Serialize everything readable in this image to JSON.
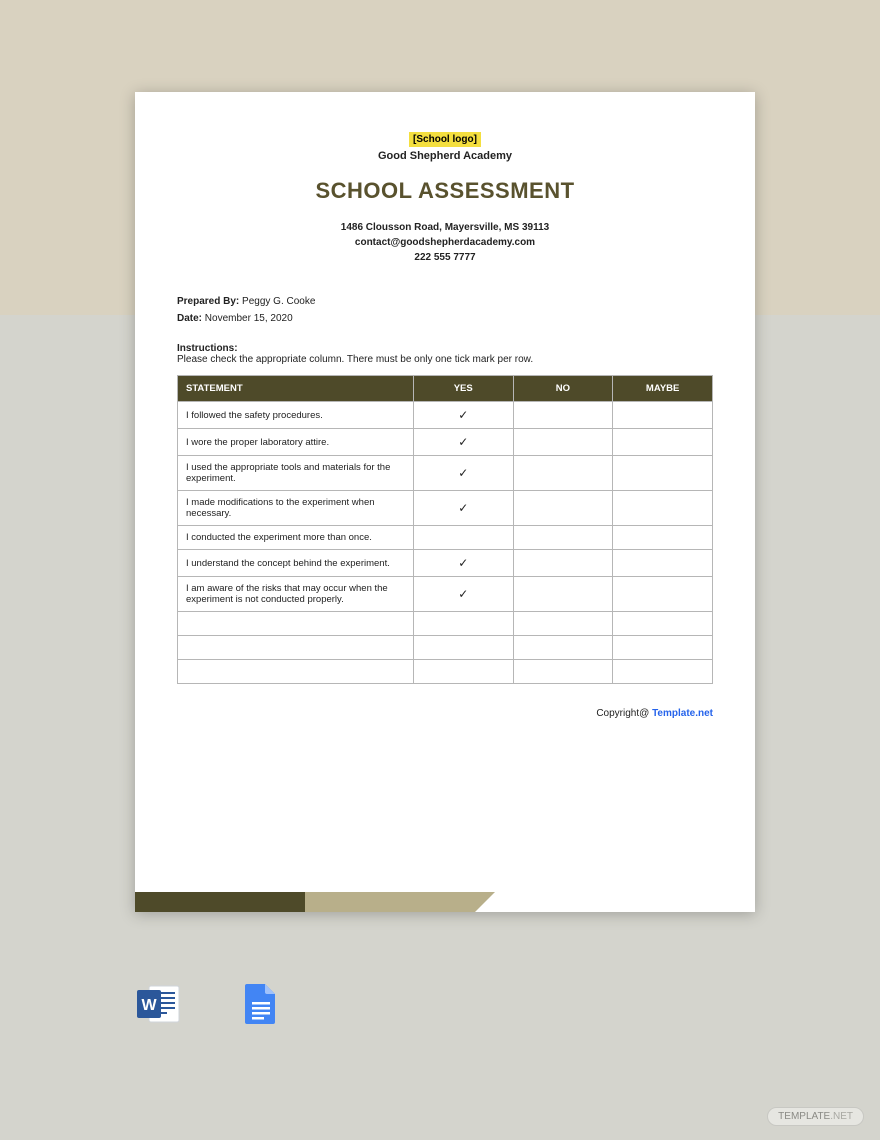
{
  "background": {
    "page_bg": "#d4d4cd",
    "top_band_bg": "#d9d2c0"
  },
  "document": {
    "logo_placeholder": "[School logo]",
    "logo_highlight_color": "#f4df3f",
    "school_name": "Good Shepherd Academy",
    "title": "SCHOOL ASSESSMENT",
    "title_color": "#59522e",
    "address": "1486 Clousson Road, Mayersville, MS 39113",
    "email": "contact@goodshepherdacademy.com",
    "phone": "222 555 7777",
    "prepared_by_label": "Prepared By:",
    "prepared_by_value": "Peggy G. Cooke",
    "date_label": "Date:",
    "date_value": "November 15, 2020",
    "instructions_label": "Instructions:",
    "instructions_text": "Please check the appropriate column. There must be only one tick mark per row.",
    "copyright_prefix": "Copyright@ ",
    "copyright_link": "Template.net"
  },
  "table": {
    "header_bg": "#4e4a29",
    "header_text_color": "#ffffff",
    "border_color": "#b6b6b6",
    "columns": [
      "STATEMENT",
      "YES",
      "NO",
      "MAYBE"
    ],
    "rows": [
      {
        "statement": "I followed the safety procedures.",
        "yes": "✓",
        "no": "",
        "maybe": ""
      },
      {
        "statement": "I wore the proper laboratory attire.",
        "yes": "✓",
        "no": "",
        "maybe": ""
      },
      {
        "statement": "I used the appropriate tools and materials for the experiment.",
        "yes": "✓",
        "no": "",
        "maybe": ""
      },
      {
        "statement": "I made modifications to the experiment when necessary.",
        "yes": "✓",
        "no": "",
        "maybe": ""
      },
      {
        "statement": "I conducted the experiment more than once.",
        "yes": "",
        "no": "",
        "maybe": ""
      },
      {
        "statement": "I understand the concept behind the experiment.",
        "yes": "✓",
        "no": "",
        "maybe": ""
      },
      {
        "statement": "I am aware of the risks that may occur when the experiment is not conducted properly.",
        "yes": "✓",
        "no": "",
        "maybe": ""
      }
    ],
    "empty_rows": 3
  },
  "footer_bar": {
    "seg1_color": "#4e4a29",
    "seg2_color": "#b8af8a"
  },
  "file_icons": {
    "word": {
      "label": "Word",
      "bg": "#2b579a",
      "accent": "#1e3f73"
    },
    "gdocs": {
      "label": "Google Docs",
      "bg": "#4285f4",
      "accent": "#a1c2fa"
    }
  },
  "watermark": {
    "text1": "TEMPLATE",
    "text2": ".NET"
  }
}
